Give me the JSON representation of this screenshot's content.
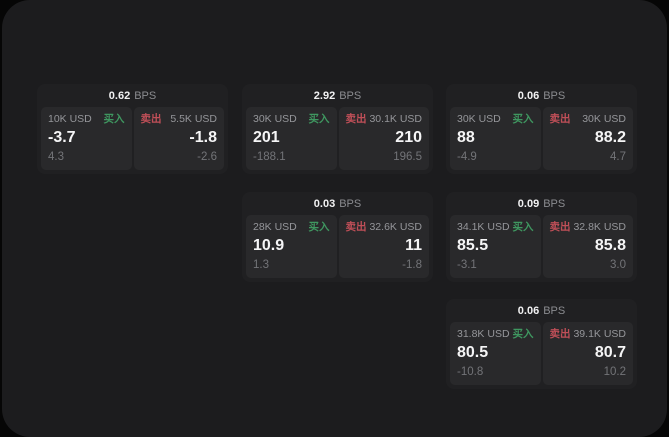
{
  "labels": {
    "buy": "买入",
    "sell": "卖出",
    "bps_unit": "BPS"
  },
  "colors": {
    "page_background": "#060606",
    "surface": "#1c1c1e",
    "card": "#202022",
    "panel": "#29292b",
    "buy_green": "#3f9760",
    "sell_red": "#c04f58",
    "value_white": "#f5f5f6",
    "label_gray": "#95969a",
    "sub_gray": "#737478"
  },
  "cards": [
    {
      "bps": "0.62",
      "buy": {
        "amount": "10K USD",
        "price": "-3.7",
        "delta": "4.3"
      },
      "sell": {
        "amount": "5.5K USD",
        "price": "-1.8",
        "delta": "-2.6"
      }
    },
    {
      "bps": "2.92",
      "buy": {
        "amount": "30K USD",
        "price": "201",
        "delta": "-188.1"
      },
      "sell": {
        "amount": "30.1K USD",
        "price": "210",
        "delta": "196.5"
      }
    },
    {
      "bps": "0.06",
      "buy": {
        "amount": "30K USD",
        "price": "88",
        "delta": "-4.9"
      },
      "sell": {
        "amount": "30K USD",
        "price": "88.2",
        "delta": "4.7"
      }
    },
    {
      "bps": "0.03",
      "buy": {
        "amount": "28K USD",
        "price": "10.9",
        "delta": "1.3"
      },
      "sell": {
        "amount": "32.6K USD",
        "price": "11",
        "delta": "-1.8"
      }
    },
    {
      "bps": "0.09",
      "buy": {
        "amount": "34.1K USD",
        "price": "85.5",
        "delta": "-3.1"
      },
      "sell": {
        "amount": "32.8K USD",
        "price": "85.8",
        "delta": "3.0"
      }
    },
    {
      "bps": "0.06",
      "buy": {
        "amount": "31.8K USD",
        "price": "80.5",
        "delta": "-10.8"
      },
      "sell": {
        "amount": "39.1K USD",
        "price": "80.7",
        "delta": "10.2"
      }
    }
  ]
}
